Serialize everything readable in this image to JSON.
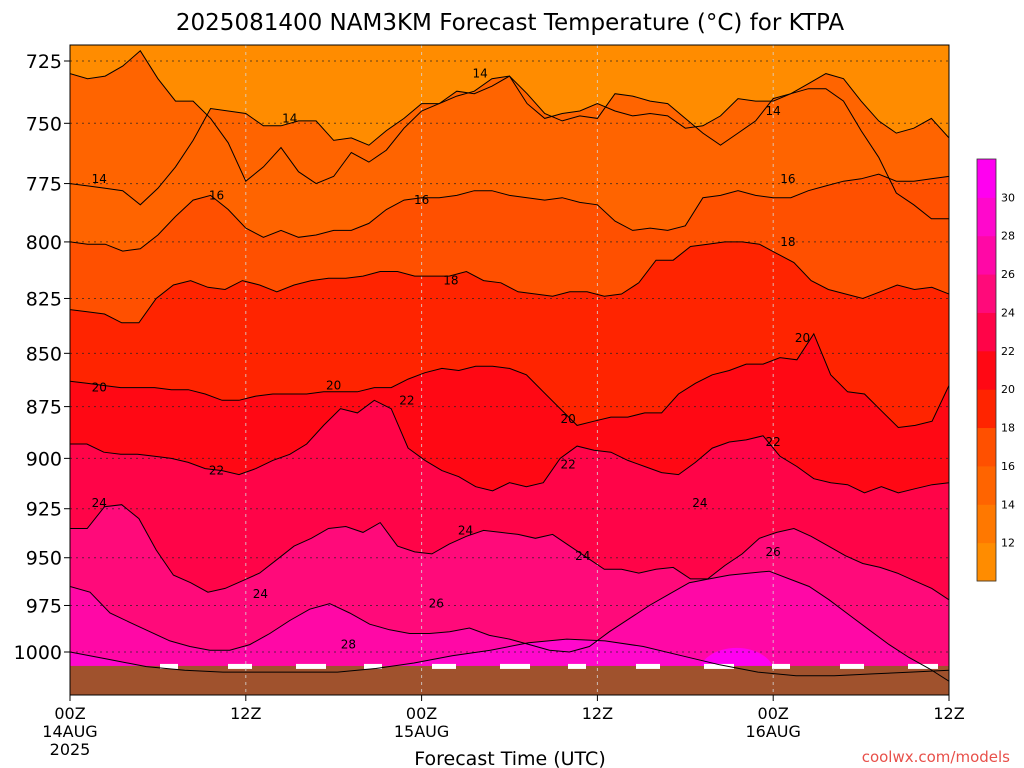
{
  "chart_data": {
    "type": "heatmap",
    "title": "2025081400 NAM3KM Forecast Temperature (°C) for KTPA",
    "xlabel": "Forecast Time (UTC)",
    "ylabel": "",
    "x_ticks": [
      {
        "hours": 0,
        "label": "00Z",
        "sub1": "14AUG",
        "sub2": "2025"
      },
      {
        "hours": 12,
        "label": "12Z",
        "sub1": "",
        "sub2": ""
      },
      {
        "hours": 24,
        "label": "00Z",
        "sub1": "15AUG",
        "sub2": ""
      },
      {
        "hours": 36,
        "label": "12Z",
        "sub1": "",
        "sub2": ""
      },
      {
        "hours": 48,
        "label": "00Z",
        "sub1": "16AUG",
        "sub2": ""
      },
      {
        "hours": 60,
        "label": "12Z",
        "sub1": "",
        "sub2": ""
      }
    ],
    "xlim_hours": [
      0,
      60
    ],
    "y_ticks": [
      725,
      750,
      775,
      800,
      825,
      850,
      875,
      900,
      925,
      950,
      975,
      1000
    ],
    "ylim_hPa": [
      715,
      1016
    ],
    "y_scale": "log-pressure",
    "grid": true,
    "colorbar": {
      "levels": [
        12,
        14,
        16,
        18,
        20,
        22,
        24,
        26,
        28,
        30
      ],
      "colors": [
        "#ff8c00",
        "#ff7800",
        "#ff6400",
        "#ff5000",
        "#ff2400",
        "#ff0814",
        "#ff0448",
        "#ff0a7a",
        "#ff08a6",
        "#ff08cc",
        "#ff00f0"
      ]
    },
    "series": [
      {
        "level": 14,
        "pressure_hPa": [
          [
            730,
            732,
            731,
            727,
            721,
            732,
            741,
            741,
            748,
            758,
            774,
            768,
            760,
            770,
            775,
            772,
            762,
            766,
            761,
            752,
            745,
            742,
            737,
            738,
            735,
            731,
            738,
            746,
            749,
            747,
            748,
            738,
            739,
            741,
            742,
            748,
            754,
            759,
            754,
            749,
            740,
            738,
            734,
            730,
            732,
            741,
            749,
            754,
            752,
            748,
            756
          ],
          [
            775,
            776,
            777,
            778,
            784,
            777,
            768,
            757,
            744,
            745,
            746,
            751,
            751,
            749,
            749,
            757,
            756,
            759,
            753,
            748,
            742,
            742,
            739,
            737,
            732,
            731,
            742,
            748,
            746,
            745,
            742,
            745,
            747,
            746,
            747,
            752,
            751,
            747,
            740,
            741,
            741,
            738,
            736,
            736,
            741,
            753,
            764,
            779,
            784,
            790,
            790
          ]
        ]
      },
      {
        "level": 16,
        "pressure_hPa": [
          [
            800,
            801,
            801,
            804,
            803,
            797,
            789,
            782,
            780,
            786,
            794,
            798,
            795,
            798,
            797,
            795,
            795,
            792,
            786,
            782,
            781,
            781,
            780,
            778,
            778,
            780,
            781,
            782,
            781,
            783,
            784,
            791,
            795,
            794,
            795,
            793,
            781,
            780,
            778,
            780,
            781,
            781,
            778,
            776,
            774,
            773,
            771,
            774,
            774,
            773,
            772
          ]
        ]
      },
      {
        "level": 18,
        "pressure_hPa": [
          [
            830,
            831,
            832,
            836,
            836,
            825,
            819,
            817,
            820,
            821,
            817,
            819,
            822,
            819,
            817,
            816,
            816,
            815,
            813,
            813,
            815,
            815,
            815,
            813,
            817,
            818,
            822,
            823,
            824,
            822,
            822,
            824,
            823,
            818,
            808,
            808,
            802,
            801,
            800,
            800,
            801,
            805,
            809,
            817,
            821,
            823,
            825,
            822,
            819,
            821,
            820,
            823
          ]
        ]
      },
      {
        "level": 20,
        "pressure_hPa": [
          [
            863,
            864,
            865,
            866,
            866,
            866,
            867,
            867,
            869,
            872,
            872,
            870,
            869,
            869,
            869,
            868,
            868,
            868,
            866,
            866,
            862,
            859,
            857,
            858,
            856,
            856,
            857,
            860,
            868,
            876,
            884,
            882,
            880,
            880,
            878,
            878,
            869,
            864,
            860,
            858,
            855,
            855,
            852,
            853,
            841,
            860,
            868,
            869,
            877,
            885,
            884,
            882,
            865
          ]
        ]
      },
      {
        "level": 22,
        "pressure_hPa": [
          [
            893,
            893,
            897,
            898,
            898,
            899,
            900,
            902,
            905,
            906,
            908,
            905,
            901,
            898,
            893,
            884,
            876,
            878,
            872,
            876,
            895,
            901,
            906,
            909,
            914,
            916,
            912,
            914,
            912,
            900,
            894,
            896,
            897,
            901,
            904,
            907,
            908,
            902,
            895,
            892,
            891,
            889,
            899,
            904,
            910,
            912,
            913,
            917,
            914,
            917,
            915,
            913,
            912
          ]
        ]
      },
      {
        "level": 24,
        "pressure_hPa": [
          [
            935,
            935,
            924,
            923,
            930,
            946,
            959,
            963,
            968,
            966,
            962,
            958,
            951,
            944,
            940,
            935,
            934,
            937,
            932,
            944,
            947,
            948,
            943,
            939,
            936,
            937,
            938,
            940,
            938,
            944,
            950,
            956,
            956,
            958,
            956,
            955,
            961,
            961,
            954,
            948,
            940,
            937,
            935,
            939,
            944,
            949,
            953,
            955,
            958,
            962,
            966,
            972
          ]
        ]
      },
      {
        "level": 26,
        "pressure_hPa": [
          [
            965,
            968,
            979,
            984,
            989,
            994,
            997,
            999,
            999,
            996,
            990,
            983,
            977,
            974,
            979,
            985,
            988,
            990,
            990,
            989,
            987,
            991,
            993,
            996,
            999,
            1000,
            997,
            989,
            982,
            975,
            969,
            963,
            961,
            959,
            958,
            957,
            961,
            965,
            972,
            980,
            988,
            996,
            1003,
            1009,
            1016
          ]
        ]
      },
      {
        "level": 28,
        "pressure_hPa": [
          [
            1000,
            1004,
            1008,
            1010,
            1011,
            1011,
            1011,
            1011,
            1009,
            1006,
            1002,
            999,
            995,
            993,
            994,
            997,
            1002,
            1007,
            1011,
            1013,
            1013,
            1012,
            1011,
            1010
          ]
        ]
      }
    ],
    "annotations": [
      {
        "label": "14",
        "hours": 28,
        "pressure_hPa": 730
      },
      {
        "label": "14",
        "hours": 15,
        "pressure_hPa": 748
      },
      {
        "label": "14",
        "hours": 48,
        "pressure_hPa": 745
      },
      {
        "label": "14",
        "hours": 2,
        "pressure_hPa": 773
      },
      {
        "label": "16",
        "hours": 10,
        "pressure_hPa": 780
      },
      {
        "label": "16",
        "hours": 24,
        "pressure_hPa": 782
      },
      {
        "label": "16",
        "hours": 49,
        "pressure_hPa": 773
      },
      {
        "label": "18",
        "hours": 26,
        "pressure_hPa": 817
      },
      {
        "label": "18",
        "hours": 49,
        "pressure_hPa": 800
      },
      {
        "label": "20",
        "hours": 2,
        "pressure_hPa": 866
      },
      {
        "label": "20",
        "hours": 18,
        "pressure_hPa": 865
      },
      {
        "label": "20",
        "hours": 34,
        "pressure_hPa": 881
      },
      {
        "label": "20",
        "hours": 50,
        "pressure_hPa": 843
      },
      {
        "label": "22",
        "hours": 23,
        "pressure_hPa": 872
      },
      {
        "label": "22",
        "hours": 10,
        "pressure_hPa": 906
      },
      {
        "label": "22",
        "hours": 34,
        "pressure_hPa": 903
      },
      {
        "label": "22",
        "hours": 48,
        "pressure_hPa": 892
      },
      {
        "label": "24",
        "hours": 2,
        "pressure_hPa": 922
      },
      {
        "label": "24",
        "hours": 27,
        "pressure_hPa": 936
      },
      {
        "label": "24",
        "hours": 43,
        "pressure_hPa": 922
      },
      {
        "label": "24",
        "hours": 35,
        "pressure_hPa": 949
      },
      {
        "label": "24",
        "hours": 13,
        "pressure_hPa": 969
      },
      {
        "label": "26",
        "hours": 25,
        "pressure_hPa": 974
      },
      {
        "label": "26",
        "hours": 48,
        "pressure_hPa": 947
      },
      {
        "label": "28",
        "hours": 19,
        "pressure_hPa": 996
      }
    ],
    "surface": {
      "color": "#a0522d",
      "pressure_hPa": 1012
    }
  },
  "footer": {
    "credit": "coolwx.com/models"
  }
}
